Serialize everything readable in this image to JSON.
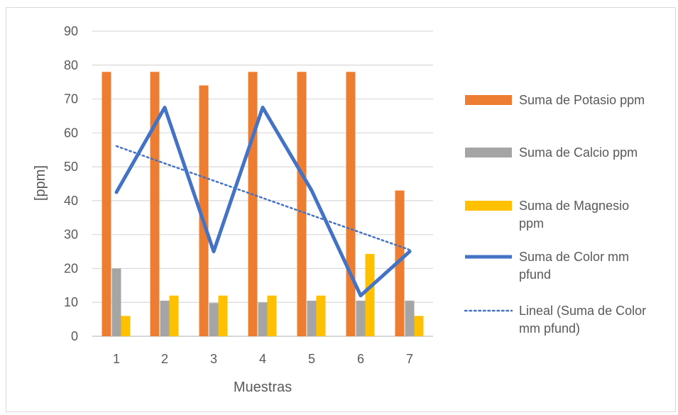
{
  "chart_data": {
    "type": "bar",
    "title": "",
    "xlabel": "Muestras",
    "ylabel": "[ppm]",
    "categories": [
      "1",
      "2",
      "3",
      "4",
      "5",
      "6",
      "7"
    ],
    "ylim": [
      0,
      90
    ],
    "yticks": [
      0,
      10,
      20,
      30,
      40,
      50,
      60,
      70,
      80,
      90
    ],
    "grid": "horizontal",
    "legend_position": "right",
    "series": [
      {
        "name": "Suma de Potasio ppm",
        "type": "bar",
        "color": "#ED7D31",
        "values": [
          78,
          78,
          74,
          78,
          78,
          78,
          43
        ]
      },
      {
        "name": "Suma de Calcio ppm",
        "type": "bar",
        "color": "#A5A5A5",
        "values": [
          20,
          10.5,
          9.8,
          10,
          10.5,
          10.5,
          10.5
        ]
      },
      {
        "name": "Suma de Magnesio ppm",
        "type": "bar",
        "color": "#FFC000",
        "values": [
          6,
          12,
          12,
          12,
          12,
          24.3,
          6
        ]
      },
      {
        "name": "Suma de Color mm pfund",
        "type": "line",
        "color": "#4472C4",
        "values": [
          42.5,
          67.5,
          25,
          67.5,
          43,
          12,
          25
        ]
      },
      {
        "name": "Lineal (Suma de Color mm pfund)",
        "type": "trendline",
        "style": "dotted",
        "color": "#4472C4",
        "values": [
          56.1,
          51.0,
          45.9,
          40.8,
          35.7,
          30.6,
          25.5
        ]
      }
    ]
  }
}
